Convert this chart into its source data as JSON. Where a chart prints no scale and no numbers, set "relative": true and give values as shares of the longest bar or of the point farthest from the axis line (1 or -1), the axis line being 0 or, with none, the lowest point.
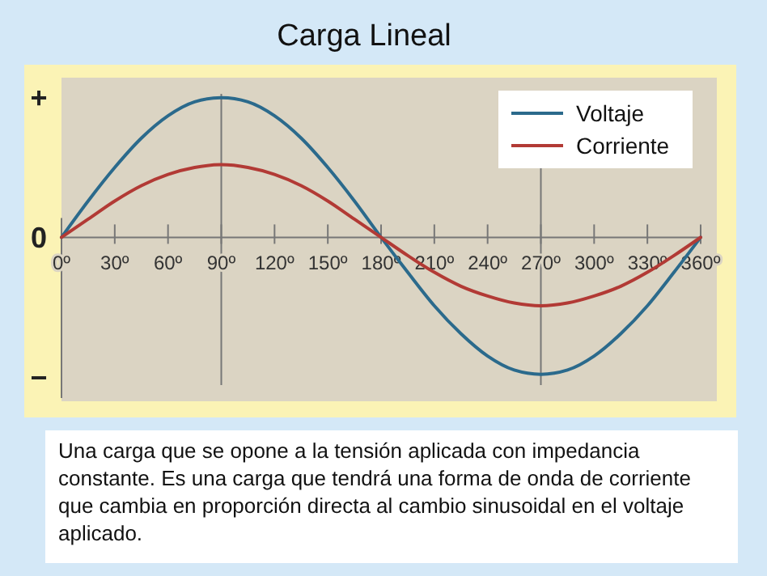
{
  "chart_data": {
    "type": "line",
    "title": "Carga Lineal",
    "relative": true,
    "x": [
      0,
      15,
      30,
      45,
      60,
      75,
      90,
      105,
      120,
      135,
      150,
      165,
      180,
      195,
      210,
      225,
      240,
      255,
      270,
      285,
      300,
      315,
      330,
      345,
      360
    ],
    "xlim": [
      0,
      360
    ],
    "xticks": [
      {
        "value": 0,
        "label": "0º"
      },
      {
        "value": 30,
        "label": "30º"
      },
      {
        "value": 60,
        "label": "60º"
      },
      {
        "value": 90,
        "label": "90º"
      },
      {
        "value": 120,
        "label": "120º"
      },
      {
        "value": 150,
        "label": "150º"
      },
      {
        "value": 180,
        "label": "180º"
      },
      {
        "value": 210,
        "label": "210º"
      },
      {
        "value": 240,
        "label": "240º"
      },
      {
        "value": 270,
        "label": "270º"
      },
      {
        "value": 300,
        "label": "300º"
      },
      {
        "value": 330,
        "label": "330º"
      },
      {
        "value": 360,
        "label": "360º"
      }
    ],
    "series": [
      {
        "name": "Voltaje",
        "color": "#2b6a8c",
        "values": [
          0,
          0.26,
          0.5,
          0.71,
          0.87,
          0.97,
          1,
          0.97,
          0.87,
          0.71,
          0.5,
          0.26,
          0,
          -0.25,
          -0.49,
          -0.69,
          -0.85,
          -0.95,
          -0.98,
          -0.95,
          -0.85,
          -0.69,
          -0.49,
          -0.25,
          0
        ]
      },
      {
        "name": "Corriente",
        "color": "#b23a35",
        "values": [
          0,
          0.13,
          0.26,
          0.37,
          0.45,
          0.5,
          0.52,
          0.5,
          0.45,
          0.37,
          0.26,
          0.13,
          0,
          -0.13,
          -0.25,
          -0.35,
          -0.42,
          -0.47,
          -0.49,
          -0.47,
          -0.42,
          -0.35,
          -0.25,
          -0.13,
          0
        ]
      }
    ],
    "ref_lines": [
      {
        "axis": "x",
        "value": 90
      },
      {
        "axis": "x",
        "value": 270
      }
    ],
    "legend": "top right",
    "marker": "none",
    "line_style": "solid",
    "annotations": [
      "+",
      "0",
      "−",
      "Una carga que se opone a la tensión aplicada con impedancia constante.  Es una carga que tendrá una forma de onda de corriente que cambia en proporción directa al cambio sinusoidal en el voltaje aplicado."
    ]
  }
}
